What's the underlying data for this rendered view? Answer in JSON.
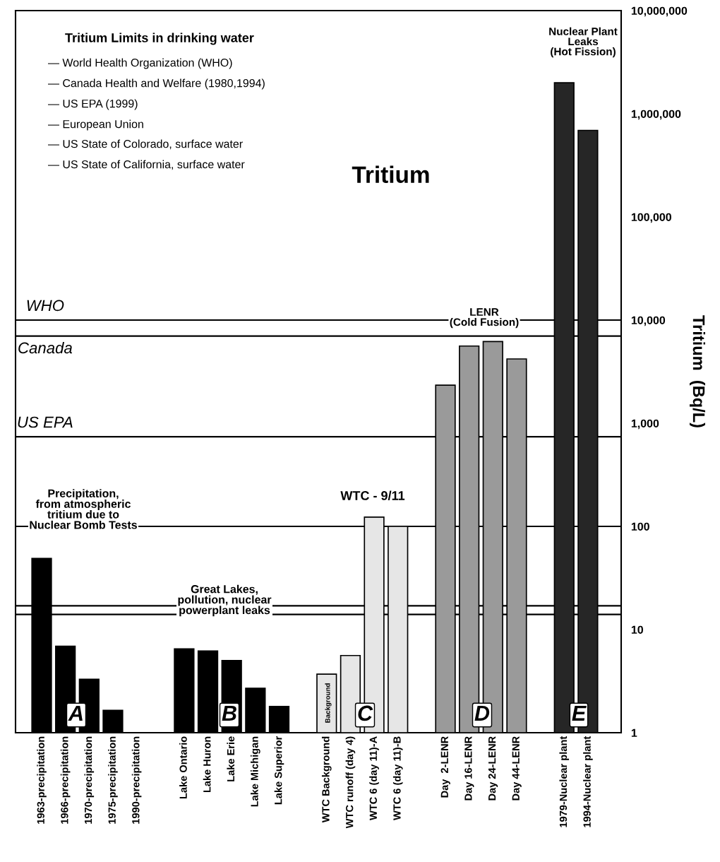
{
  "chart_data": {
    "type": "bar",
    "title": "Tritium",
    "ylabel": "Tritium  (Bq/L)",
    "categories": [
      "1963-precipitation",
      "1966-precipitation",
      "1970-precipitation",
      "1975-precipitation",
      "1990-precipitation",
      null,
      "Lake Ontario",
      "Lake Huron",
      "Lake Erie",
      "Lake Michigan",
      "Lake Superior",
      null,
      "WTC Background",
      "WTC runoff (day 4)",
      "WTC 6 (day 11)-A",
      "WTC 6 (day 11)-B",
      null,
      "Day  2-LENR",
      "Day 16-LENR",
      "Day 24-LENR",
      "Day 44-LENR",
      null,
      "1979-Nuclear plant",
      "1994-Nuclear plant"
    ],
    "values": [
      49,
      6.9,
      3.3,
      1.65,
      null,
      null,
      6.5,
      6.2,
      5.0,
      2.7,
      1.8,
      null,
      3.7,
      5.6,
      123,
      100,
      null,
      2340,
      5600,
      6200,
      4200,
      null,
      2000000,
      690000
    ],
    "colors": [
      "#000000",
      "#000000",
      "#000000",
      "#000000",
      "#000000",
      null,
      "#000000",
      "#000000",
      "#000000",
      "#000000",
      "#000000",
      null,
      "#e6e6e6",
      "#e6e6e6",
      "#e6e6e6",
      "#e6e6e6",
      null,
      "#9a9a9a",
      "#9a9a9a",
      "#9a9a9a",
      "#9a9a9a",
      null,
      "#262626",
      "#262626"
    ],
    "log": "y",
    "ylim": [
      1,
      10000000
    ],
    "yticks": [
      1,
      10,
      100,
      {
        "value": 1000,
        "label": "1,000"
      },
      {
        "value": 10000,
        "label": "10,000"
      },
      {
        "value": 100000,
        "label": "100,000"
      },
      {
        "value": 1000000,
        "label": "1,000,000"
      },
      {
        "value": 10000000,
        "label": "10,000,000"
      }
    ],
    "grid": false,
    "legend": false,
    "ref_lines": [
      {
        "axis": "y",
        "value": 10000,
        "label": "WHO",
        "color": "#000000"
      },
      {
        "axis": "y",
        "value": 7000,
        "label": "Canada",
        "color": "#000000"
      },
      {
        "axis": "y",
        "value": 740,
        "label": "US EPA",
        "color": "#000000"
      },
      {
        "axis": "y",
        "value": 100,
        "label": null,
        "color": "#000000"
      },
      {
        "axis": "y",
        "value": 17,
        "label": null,
        "color": "#000000"
      },
      {
        "axis": "y",
        "value": 14,
        "label": null,
        "color": "#000000"
      }
    ],
    "annotations": [
      "Tritium Limits in drinking water",
      "— World Health Organization (WHO)",
      "— Canada Health and Welfare (1980,1994)",
      "— US EPA (1999)",
      "— European Union",
      "— US State of Colorado, surface water",
      "— US State of California, surface water",
      "Precipitation,\nfrom atmospheric\ntritium due to\nNuclear Bomb Tests",
      "Great Lakes,\npollution, nuclear\npowerplant leaks",
      "WTC - 9/11",
      "LENR\n(Cold Fusion)",
      "Nuclear Plant\nLeaks\n(Hot Fission)",
      "A",
      "B",
      "C",
      "D",
      "E",
      "Background"
    ]
  }
}
